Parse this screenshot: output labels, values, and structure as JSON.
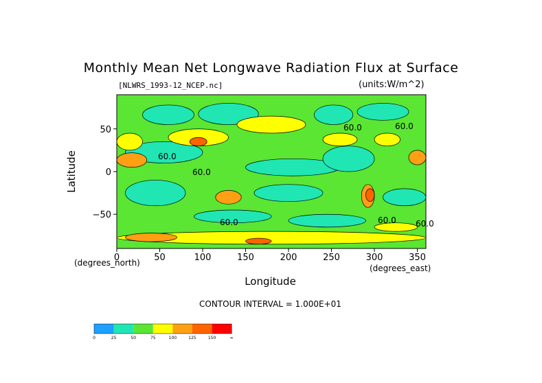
{
  "chart_data": {
    "type": "heatmap",
    "title": "Monthly Mean Net Longwave Radiation Flux at Surface",
    "file_label": "[NLWRS_1993-12_NCEP.nc]",
    "units": "(units:W/m^2)",
    "xlabel": "Longitude",
    "ylabel": "Latitude",
    "x_unit_label": "(degrees_east)",
    "y_unit_label": "(degrees_north)",
    "xlim": [
      0,
      360
    ],
    "ylim": [
      -90,
      90
    ],
    "xticks": [
      "0",
      "50",
      "100",
      "150",
      "200",
      "250",
      "300",
      "350"
    ],
    "yticks": [
      "50",
      "0",
      "−50"
    ],
    "contour_interval_label": "CONTOUR INTERVAL = 1.000E+01",
    "contour_labels": [
      "60.0",
      "60.0",
      "60.0",
      "60.0",
      "60.0",
      "60.0",
      "60.0"
    ],
    "colorbar": {
      "levels": [
        "0",
        "25",
        "50",
        "75",
        "100",
        "125",
        "150",
        "∞"
      ],
      "colors": [
        "#1ea0ff",
        "#20e6b4",
        "#5ae632",
        "#ffff00",
        "#ffa014",
        "#ff6400",
        "#ff0000"
      ]
    },
    "field": {
      "background": "#5ae632",
      "regions": [
        {
          "level": 1,
          "lon": [
            30,
            90
          ],
          "lat": [
            55,
            78
          ]
        },
        {
          "level": 1,
          "lon": [
            95,
            165
          ],
          "lat": [
            55,
            80
          ]
        },
        {
          "level": 1,
          "lon": [
            230,
            275
          ],
          "lat": [
            55,
            78
          ]
        },
        {
          "level": 1,
          "lon": [
            280,
            340
          ],
          "lat": [
            60,
            80
          ]
        },
        {
          "level": 1,
          "lon": [
            10,
            100
          ],
          "lat": [
            10,
            35
          ]
        },
        {
          "level": 1,
          "lon": [
            150,
            260
          ],
          "lat": [
            -5,
            15
          ]
        },
        {
          "level": 1,
          "lon": [
            240,
            300
          ],
          "lat": [
            0,
            30
          ]
        },
        {
          "level": 1,
          "lon": [
            10,
            80
          ],
          "lat": [
            -40,
            -10
          ]
        },
        {
          "level": 1,
          "lon": [
            160,
            240
          ],
          "lat": [
            -35,
            -15
          ]
        },
        {
          "level": 1,
          "lon": [
            90,
            180
          ],
          "lat": [
            -60,
            -45
          ]
        },
        {
          "level": 1,
          "lon": [
            200,
            290
          ],
          "lat": [
            -65,
            -50
          ]
        },
        {
          "level": 1,
          "lon": [
            310,
            360
          ],
          "lat": [
            -40,
            -20
          ]
        },
        {
          "level": 3,
          "lon": [
            0,
            30
          ],
          "lat": [
            25,
            45
          ]
        },
        {
          "level": 3,
          "lon": [
            60,
            130
          ],
          "lat": [
            30,
            50
          ]
        },
        {
          "level": 3,
          "lon": [
            140,
            220
          ],
          "lat": [
            45,
            65
          ]
        },
        {
          "level": 3,
          "lon": [
            240,
            280
          ],
          "lat": [
            30,
            45
          ]
        },
        {
          "level": 3,
          "lon": [
            300,
            330
          ],
          "lat": [
            30,
            45
          ]
        },
        {
          "level": 3,
          "lon": [
            0,
            360
          ],
          "lat": [
            -85,
            -70
          ]
        },
        {
          "level": 3,
          "lon": [
            300,
            350
          ],
          "lat": [
            -70,
            -60
          ]
        },
        {
          "level": 4,
          "lon": [
            0,
            35
          ],
          "lat": [
            5,
            22
          ]
        },
        {
          "level": 4,
          "lon": [
            115,
            145
          ],
          "lat": [
            -38,
            -22
          ]
        },
        {
          "level": 4,
          "lon": [
            285,
            300
          ],
          "lat": [
            -42,
            -15
          ]
        },
        {
          "level": 4,
          "lon": [
            340,
            360
          ],
          "lat": [
            8,
            25
          ]
        },
        {
          "level": 4,
          "lon": [
            10,
            70
          ],
          "lat": [
            -82,
            -72
          ]
        },
        {
          "level": 5,
          "lon": [
            85,
            105
          ],
          "lat": [
            30,
            40
          ]
        },
        {
          "level": 5,
          "lon": [
            150,
            180
          ],
          "lat": [
            -85,
            -78
          ]
        },
        {
          "level": 5,
          "lon": [
            290,
            300
          ],
          "lat": [
            -35,
            -20
          ]
        }
      ]
    }
  }
}
